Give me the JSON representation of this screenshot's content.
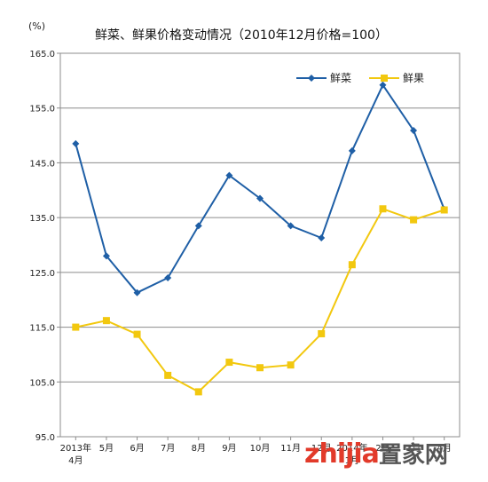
{
  "chart_data": {
    "type": "line",
    "title": "鲜菜、鲜果价格变动情况（2010年12月价格=100）",
    "unit_label": "(%)",
    "categories": [
      "2013年\n4月",
      "5月",
      "6月",
      "7月",
      "8月",
      "9月",
      "10月",
      "11月",
      "12月",
      "2014年\n1月",
      "2月",
      "3月",
      "4月"
    ],
    "ylim": [
      95,
      165
    ],
    "yticks": [
      "95.0",
      "105.0",
      "115.0",
      "125.0",
      "135.0",
      "145.0",
      "155.0",
      "165.0"
    ],
    "grid": true,
    "legend": "top-right",
    "series": [
      {
        "name": "鲜菜",
        "color": "#1f5fa6",
        "marker": "diamond",
        "values": [
          148.5,
          128.0,
          121.3,
          124.0,
          133.5,
          142.7,
          138.5,
          133.5,
          131.3,
          147.2,
          159.2,
          150.9,
          136.5
        ]
      },
      {
        "name": "鲜果",
        "color": "#f2c80f",
        "marker": "square",
        "values": [
          115.0,
          116.2,
          113.7,
          106.2,
          103.2,
          108.6,
          107.6,
          108.1,
          113.8,
          126.4,
          136.6,
          134.6,
          136.4
        ]
      }
    ]
  },
  "watermark": {
    "brand": "zhijia",
    "suffix": "置家网"
  }
}
